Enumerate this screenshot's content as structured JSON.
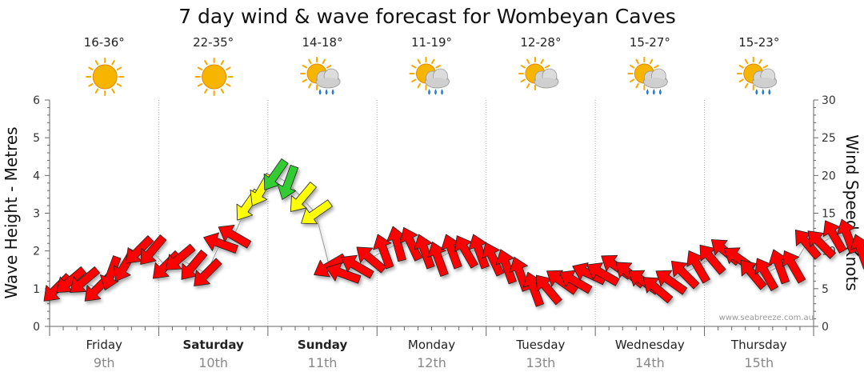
{
  "chart_data": {
    "type": "scatter",
    "title": "7 day wind & wave forecast for Wombeyan Caves",
    "ylabel": "Wave Height - Metres",
    "y2label": "Wind Speed - Knots",
    "ylim": [
      0,
      6
    ],
    "y2lim": [
      0,
      30
    ],
    "yticks": [
      "0",
      "1",
      "2",
      "3",
      "4",
      "5",
      "6"
    ],
    "y2ticks": [
      "0",
      "5",
      "10",
      "15",
      "20",
      "25",
      "30"
    ],
    "grid": true,
    "watermark": "www.seabreeze.com.au",
    "days": [
      {
        "name": "Friday",
        "date": "9th",
        "bold": false,
        "temp": "16-36°",
        "icon": "sun-icon"
      },
      {
        "name": "Saturday",
        "date": "10th",
        "bold": true,
        "temp": "22-35°",
        "icon": "sun-icon"
      },
      {
        "name": "Sunday",
        "date": "11th",
        "bold": true,
        "temp": "14-18°",
        "icon": "sun-rain-cloud-icon"
      },
      {
        "name": "Monday",
        "date": "12th",
        "bold": false,
        "temp": "11-19°",
        "icon": "sun-rain-cloud-icon"
      },
      {
        "name": "Tuesday",
        "date": "13th",
        "bold": false,
        "temp": "12-28°",
        "icon": "sun-cloud-icon"
      },
      {
        "name": "Wednesday",
        "date": "14th",
        "bold": false,
        "temp": "15-27°",
        "icon": "sun-rain-cloud-icon"
      },
      {
        "name": "Thursday",
        "date": "15th",
        "bold": false,
        "temp": "15-23°",
        "icon": "sun-rain-cloud-icon"
      }
    ],
    "series": [
      {
        "name": "wind",
        "unit": "knots",
        "step_hours": 3,
        "values": [
          5,
          6,
          6,
          5,
          7,
          8,
          10,
          10,
          8,
          9,
          8,
          7,
          11,
          12,
          16,
          18,
          20,
          19,
          17,
          15,
          8,
          7,
          8,
          9,
          10,
          11,
          11,
          10,
          9,
          10,
          10,
          10,
          9,
          8,
          7,
          5,
          5,
          6,
          6,
          7,
          7,
          8,
          7,
          6,
          5,
          6,
          7,
          8,
          9,
          10,
          9,
          7,
          7,
          8,
          8,
          11,
          11,
          12,
          12,
          10,
          8,
          7
        ],
        "directions_deg": [
          135,
          140,
          140,
          135,
          110,
          120,
          135,
          130,
          135,
          140,
          130,
          135,
          200,
          210,
          125,
          120,
          125,
          110,
          130,
          145,
          150,
          200,
          210,
          220,
          250,
          255,
          245,
          250,
          250,
          250,
          240,
          250,
          245,
          250,
          250,
          250,
          230,
          215,
          210,
          205,
          210,
          215,
          220,
          215,
          220,
          215,
          225,
          240,
          230,
          220,
          215,
          230,
          240,
          250,
          240,
          230,
          225,
          240,
          250,
          250,
          235,
          225
        ],
        "colors": [
          "#ff0000",
          "#ffff00",
          "#33cc33"
        ],
        "thresholds_knots": [
          15,
          19
        ]
      }
    ]
  }
}
